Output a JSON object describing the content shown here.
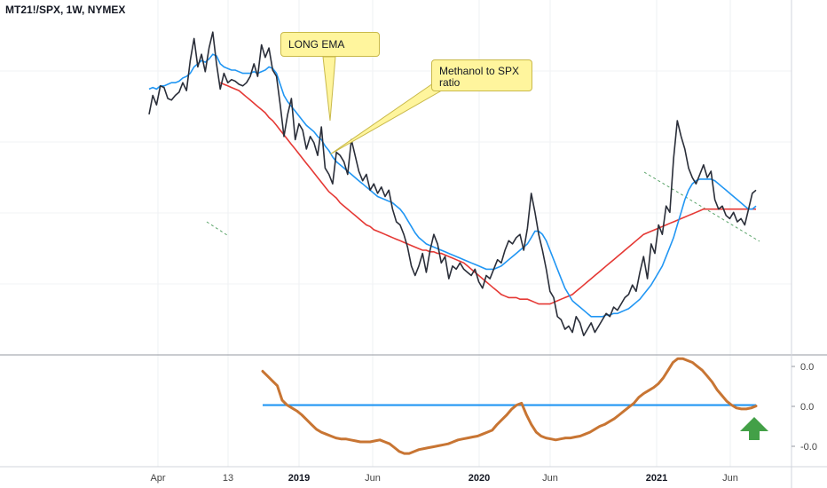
{
  "header": {
    "symbol_line": "MT21!/SPX, 1W, NYMEX"
  },
  "annotations": {
    "long_ema": "LONG EMA",
    "methanol_ratio": "Methanol to SPX ratio"
  },
  "colors": {
    "price": "#2a2e39",
    "short_ema": "#2196f3",
    "long_ema": "#e53935",
    "oscillator": "#c87533",
    "zero_line": "#2196f3",
    "arrow": "#43a047",
    "trend": "#5aa469"
  },
  "chart_data": [
    {
      "type": "line",
      "name": "main-panel",
      "x_ticks": [
        {
          "label": "Apr",
          "year": false
        },
        {
          "label": "13",
          "year": false
        },
        {
          "label": "2019",
          "year": true
        },
        {
          "label": "Jun",
          "year": false
        },
        {
          "label": "2020",
          "year": true
        },
        {
          "label": "Jun",
          "year": false
        },
        {
          "label": "2021",
          "year": true
        },
        {
          "label": "Jun",
          "year": false
        }
      ],
      "price": [
        40,
        52,
        46,
        58,
        57,
        50,
        49,
        52,
        54,
        60,
        55,
        74,
        88,
        70,
        78,
        67,
        82,
        92,
        72,
        56,
        66,
        60,
        62,
        61,
        59,
        58,
        60,
        64,
        72,
        64,
        84,
        76,
        82,
        68,
        64,
        46,
        26,
        40,
        50,
        24,
        34,
        30,
        18,
        26,
        22,
        14,
        32,
        6,
        2,
        -4,
        16,
        14,
        10,
        2,
        24,
        14,
        4,
        -2,
        2,
        -8,
        -4,
        -10,
        -6,
        -12,
        -8,
        -20,
        -28,
        -30,
        -36,
        -44,
        -56,
        -62,
        -56,
        -48,
        -60,
        -46,
        -36,
        -42,
        -54,
        -50,
        -64,
        -56,
        -58,
        -54,
        -58,
        -60,
        -62,
        -58,
        -66,
        -70,
        -62,
        -64,
        -58,
        -52,
        -54,
        -46,
        -40,
        -42,
        -38,
        -36,
        -46,
        -32,
        -10,
        -22,
        -36,
        -46,
        -58,
        -72,
        -76,
        -88,
        -90,
        -96,
        -94,
        -98,
        -88,
        -92,
        -100,
        -96,
        -92,
        -98,
        -94,
        -90,
        -86,
        -88,
        -82,
        -84,
        -80,
        -76,
        -74,
        -68,
        -72,
        -60,
        -50,
        -64,
        -42,
        -48,
        -30,
        -36,
        -18,
        -22,
        12,
        36,
        26,
        18,
        6,
        0,
        -4,
        2,
        8,
        0,
        4,
        -14,
        -20,
        -18,
        -24,
        -26,
        -22,
        -28,
        -26,
        -30,
        -20,
        -10,
        -8
      ],
      "short_ema": [
        56,
        57,
        56,
        58,
        58,
        59,
        60,
        60,
        61,
        63,
        64,
        66,
        70,
        72,
        74,
        73,
        75,
        78,
        77,
        72,
        70,
        69,
        68,
        68,
        67,
        66,
        66,
        66,
        67,
        66,
        67,
        68,
        70,
        69,
        66,
        59,
        52,
        48,
        45,
        42,
        39,
        36,
        33,
        31,
        29,
        26,
        24,
        20,
        17,
        13,
        10,
        8,
        6,
        4,
        2,
        0,
        -2,
        -4,
        -6,
        -8,
        -10,
        -12,
        -13,
        -14,
        -15,
        -16,
        -18,
        -20,
        -23,
        -27,
        -31,
        -35,
        -38,
        -40,
        -42,
        -43,
        -44,
        -45,
        -46,
        -47,
        -48,
        -49,
        -50,
        -51,
        -52,
        -53,
        -54,
        -55,
        -56,
        -57,
        -58,
        -58,
        -58,
        -57,
        -56,
        -54,
        -52,
        -50,
        -48,
        -46,
        -44,
        -42,
        -38,
        -34,
        -34,
        -36,
        -40,
        -46,
        -52,
        -58,
        -64,
        -70,
        -74,
        -78,
        -80,
        -82,
        -84,
        -86,
        -88,
        -88,
        -88,
        -88,
        -87,
        -87,
        -86,
        -86,
        -85,
        -84,
        -83,
        -81,
        -79,
        -77,
        -74,
        -71,
        -68,
        -64,
        -60,
        -56,
        -50,
        -44,
        -38,
        -30,
        -22,
        -14,
        -8,
        -4,
        -2,
        -1,
        -1,
        -1,
        -1,
        -2,
        -4,
        -6,
        -8,
        -10,
        -12,
        -14,
        -16,
        -18,
        -20,
        -20,
        -18
      ],
      "long_ema": [
        null,
        null,
        null,
        null,
        null,
        null,
        null,
        null,
        null,
        null,
        null,
        null,
        null,
        null,
        null,
        null,
        null,
        null,
        null,
        60,
        59,
        58,
        57,
        56,
        55,
        53,
        51,
        49,
        47,
        45,
        43,
        41,
        38,
        36,
        33,
        30,
        27,
        24,
        21,
        18,
        15,
        12,
        9,
        6,
        3,
        0,
        -3,
        -6,
        -9,
        -11,
        -13,
        -16,
        -18,
        -20,
        -22,
        -24,
        -26,
        -28,
        -30,
        -31,
        -33,
        -34,
        -35,
        -36,
        -37,
        -38,
        -39,
        -40,
        -41,
        -42,
        -43,
        -44,
        -45,
        -46,
        -46,
        -47,
        -47,
        -48,
        -48,
        -49,
        -50,
        -51,
        -52,
        -53,
        -54,
        -56,
        -58,
        -60,
        -62,
        -64,
        -66,
        -68,
        -70,
        -72,
        -74,
        -75,
        -76,
        -76,
        -76,
        -77,
        -77,
        -77,
        -78,
        -79,
        -80,
        -80,
        -80,
        -80,
        -79,
        -78,
        -77,
        -76,
        -75,
        -74,
        -72,
        -70,
        -68,
        -66,
        -64,
        -62,
        -60,
        -58,
        -56,
        -54,
        -52,
        -50,
        -48,
        -46,
        -44,
        -42,
        -40,
        -38,
        -36,
        -35,
        -34,
        -33,
        -32,
        -31,
        -30,
        -29,
        -28,
        -27,
        -26,
        -25,
        -24,
        -23,
        -22,
        -21,
        -20,
        -20,
        -20,
        -20,
        -20,
        -20,
        -20,
        -20,
        -20,
        -20,
        -20,
        -20,
        -20,
        -20,
        -20
      ],
      "ylim": [
        -110,
        100
      ]
    },
    {
      "type": "line",
      "name": "oscillator-panel",
      "y_ticks": [
        "0.0",
        "0.0",
        "-0.0"
      ],
      "oscillator": [
        0.035,
        0.03,
        0.025,
        0.02,
        0.005,
        0.0,
        -0.003,
        -0.006,
        -0.01,
        -0.015,
        -0.02,
        -0.025,
        -0.028,
        -0.03,
        -0.032,
        -0.034,
        -0.035,
        -0.035,
        -0.036,
        -0.037,
        -0.038,
        -0.038,
        -0.038,
        -0.037,
        -0.036,
        -0.038,
        -0.04,
        -0.044,
        -0.048,
        -0.05,
        -0.05,
        -0.048,
        -0.046,
        -0.045,
        -0.044,
        -0.043,
        -0.042,
        -0.041,
        -0.04,
        -0.038,
        -0.036,
        -0.035,
        -0.034,
        -0.033,
        -0.032,
        -0.03,
        -0.028,
        -0.026,
        -0.02,
        -0.015,
        -0.01,
        -0.004,
        0.0,
        0.002,
        -0.01,
        -0.02,
        -0.028,
        -0.032,
        -0.034,
        -0.035,
        -0.036,
        -0.035,
        -0.034,
        -0.034,
        -0.033,
        -0.032,
        -0.03,
        -0.028,
        -0.025,
        -0.022,
        -0.02,
        -0.017,
        -0.014,
        -0.01,
        -0.006,
        -0.002,
        0.002,
        0.008,
        0.012,
        0.015,
        0.018,
        0.022,
        0.028,
        0.036,
        0.044,
        0.048,
        0.048,
        0.046,
        0.044,
        0.04,
        0.036,
        0.03,
        0.024,
        0.016,
        0.01,
        0.004,
        0.0,
        -0.003,
        -0.004,
        -0.004,
        -0.003,
        -0.001
      ],
      "zero": 0.0,
      "ylim": [
        -0.06,
        0.05
      ]
    }
  ]
}
